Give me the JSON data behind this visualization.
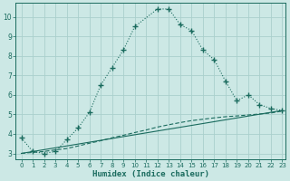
{
  "xlabel": "Humidex (Indice chaleur)",
  "bg_color": "#cce8e5",
  "grid_color": "#aad0cc",
  "line_color": "#1a6b5e",
  "xlim": [
    -0.5,
    23.3
  ],
  "ylim": [
    2.7,
    10.7
  ],
  "yticks": [
    3,
    4,
    5,
    6,
    7,
    8,
    9,
    10
  ],
  "xticks": [
    0,
    1,
    2,
    3,
    4,
    5,
    6,
    7,
    8,
    9,
    10,
    11,
    12,
    13,
    14,
    15,
    16,
    17,
    18,
    19,
    20,
    21,
    22,
    23
  ],
  "curve1_x": [
    0,
    1,
    2,
    3,
    4,
    5,
    6,
    7,
    8,
    9,
    10,
    12,
    13,
    14,
    15,
    16,
    17,
    18,
    19,
    20,
    21,
    22,
    23
  ],
  "curve1_y": [
    3.8,
    3.1,
    3.0,
    3.1,
    3.7,
    4.3,
    5.1,
    6.5,
    7.4,
    8.3,
    9.5,
    10.4,
    10.4,
    9.6,
    9.3,
    8.3,
    7.8,
    6.7,
    5.7,
    6.0,
    5.5,
    5.3,
    5.2
  ],
  "curve2_x": [
    0,
    1,
    2,
    3,
    4,
    5,
    6,
    7,
    8,
    9,
    10,
    11,
    12,
    13,
    14,
    15,
    16,
    17,
    18,
    19,
    20,
    21,
    22,
    23
  ],
  "curve2_y": [
    3.0,
    3.05,
    3.1,
    3.18,
    3.25,
    3.38,
    3.52,
    3.65,
    3.8,
    3.93,
    4.07,
    4.2,
    4.35,
    4.47,
    4.58,
    4.68,
    4.75,
    4.82,
    4.88,
    4.92,
    4.97,
    5.02,
    5.07,
    5.17
  ],
  "curve3_x": [
    0,
    23
  ],
  "curve3_y": [
    3.0,
    5.2
  ]
}
